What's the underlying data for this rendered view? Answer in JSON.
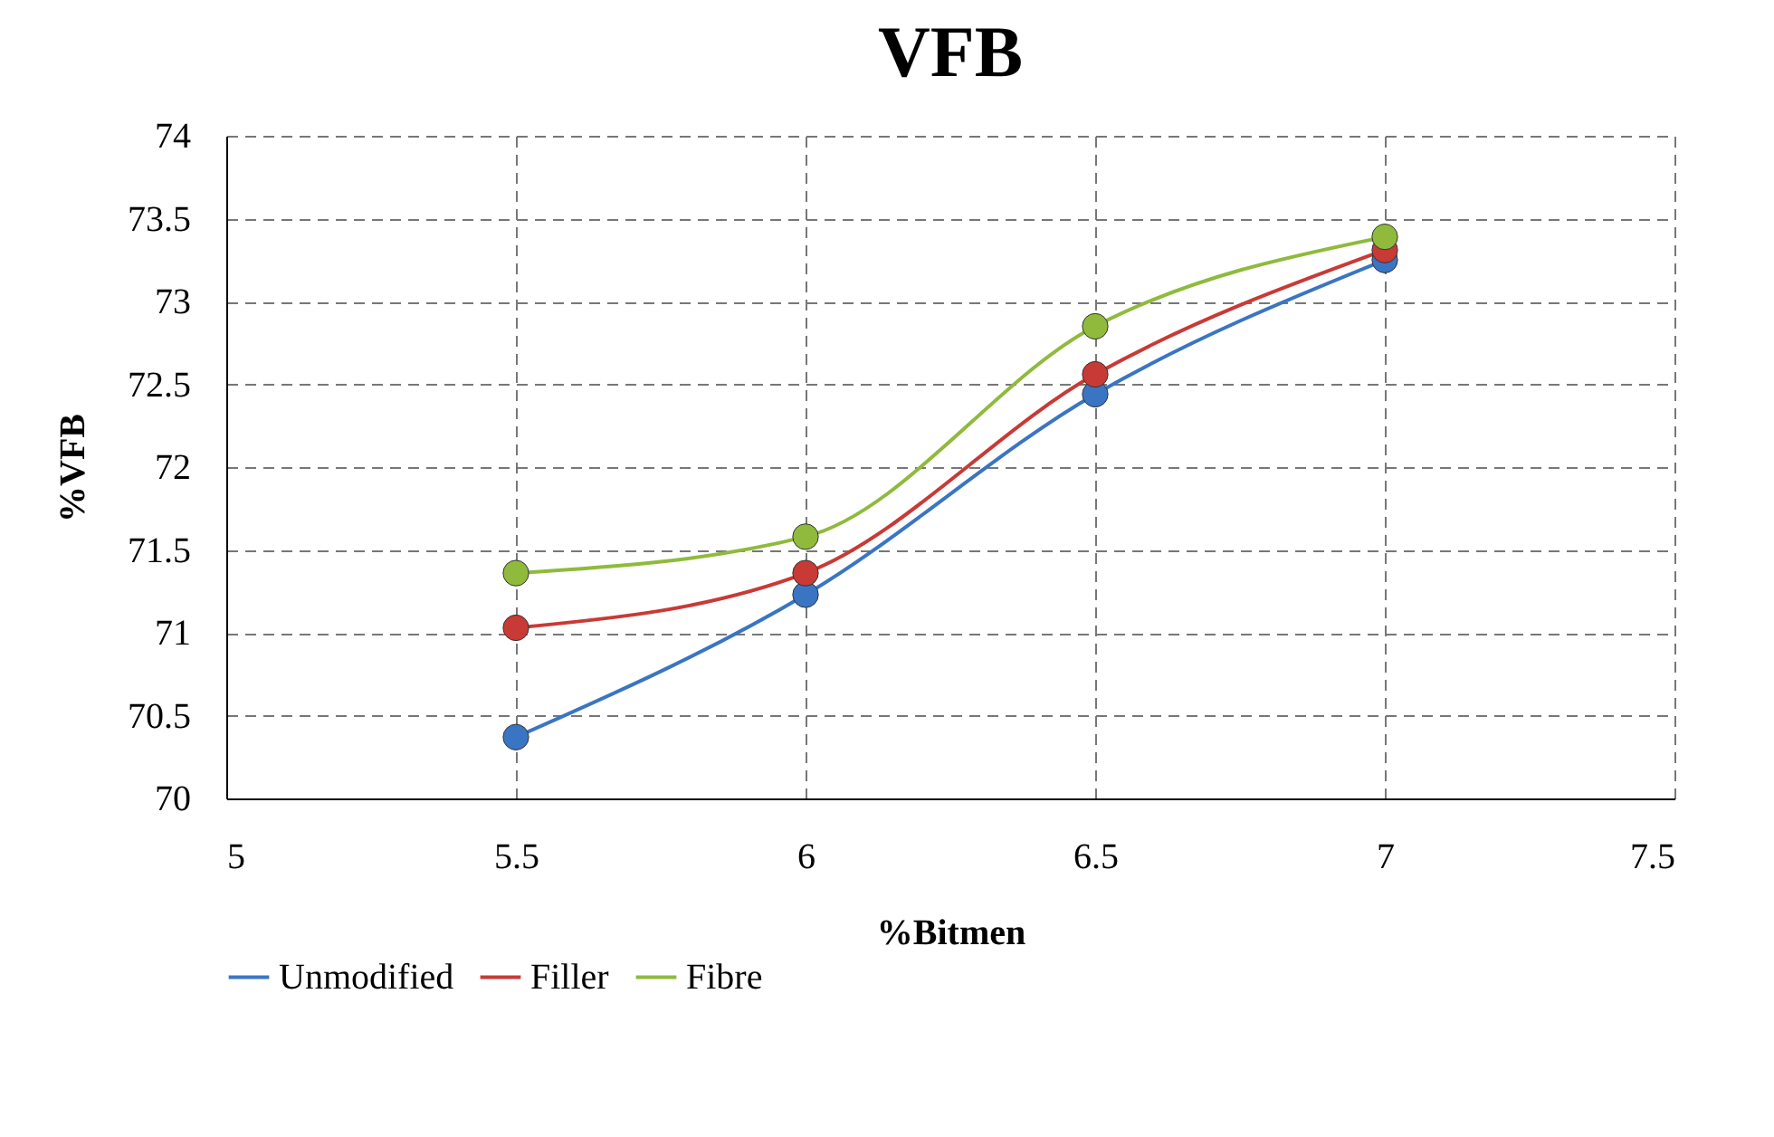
{
  "chart_data": {
    "type": "line",
    "title": "VFB",
    "xlabel": "%Bitmen",
    "ylabel": "%VFB",
    "x": [
      5.5,
      6,
      6.5,
      7
    ],
    "series": [
      {
        "name": "Unmodified",
        "color": "#3a75c4",
        "values": [
          70.37,
          71.23,
          72.44,
          73.25
        ]
      },
      {
        "name": "Filler",
        "color": "#c83a36",
        "values": [
          71.03,
          71.36,
          72.56,
          73.31
        ]
      },
      {
        "name": "Fibre",
        "color": "#8fba3c",
        "values": [
          71.36,
          71.58,
          72.85,
          73.39
        ]
      }
    ],
    "xlim": [
      5,
      7.5
    ],
    "xticks": [
      5,
      5.5,
      6,
      6.5,
      7,
      7.5
    ],
    "ylim": [
      70,
      74
    ],
    "yticks": [
      70,
      70.5,
      71,
      71.5,
      72,
      72.5,
      73,
      73.5,
      74
    ],
    "grid": true,
    "legend": "bottom",
    "marker": "circle",
    "line_style": "solid"
  }
}
